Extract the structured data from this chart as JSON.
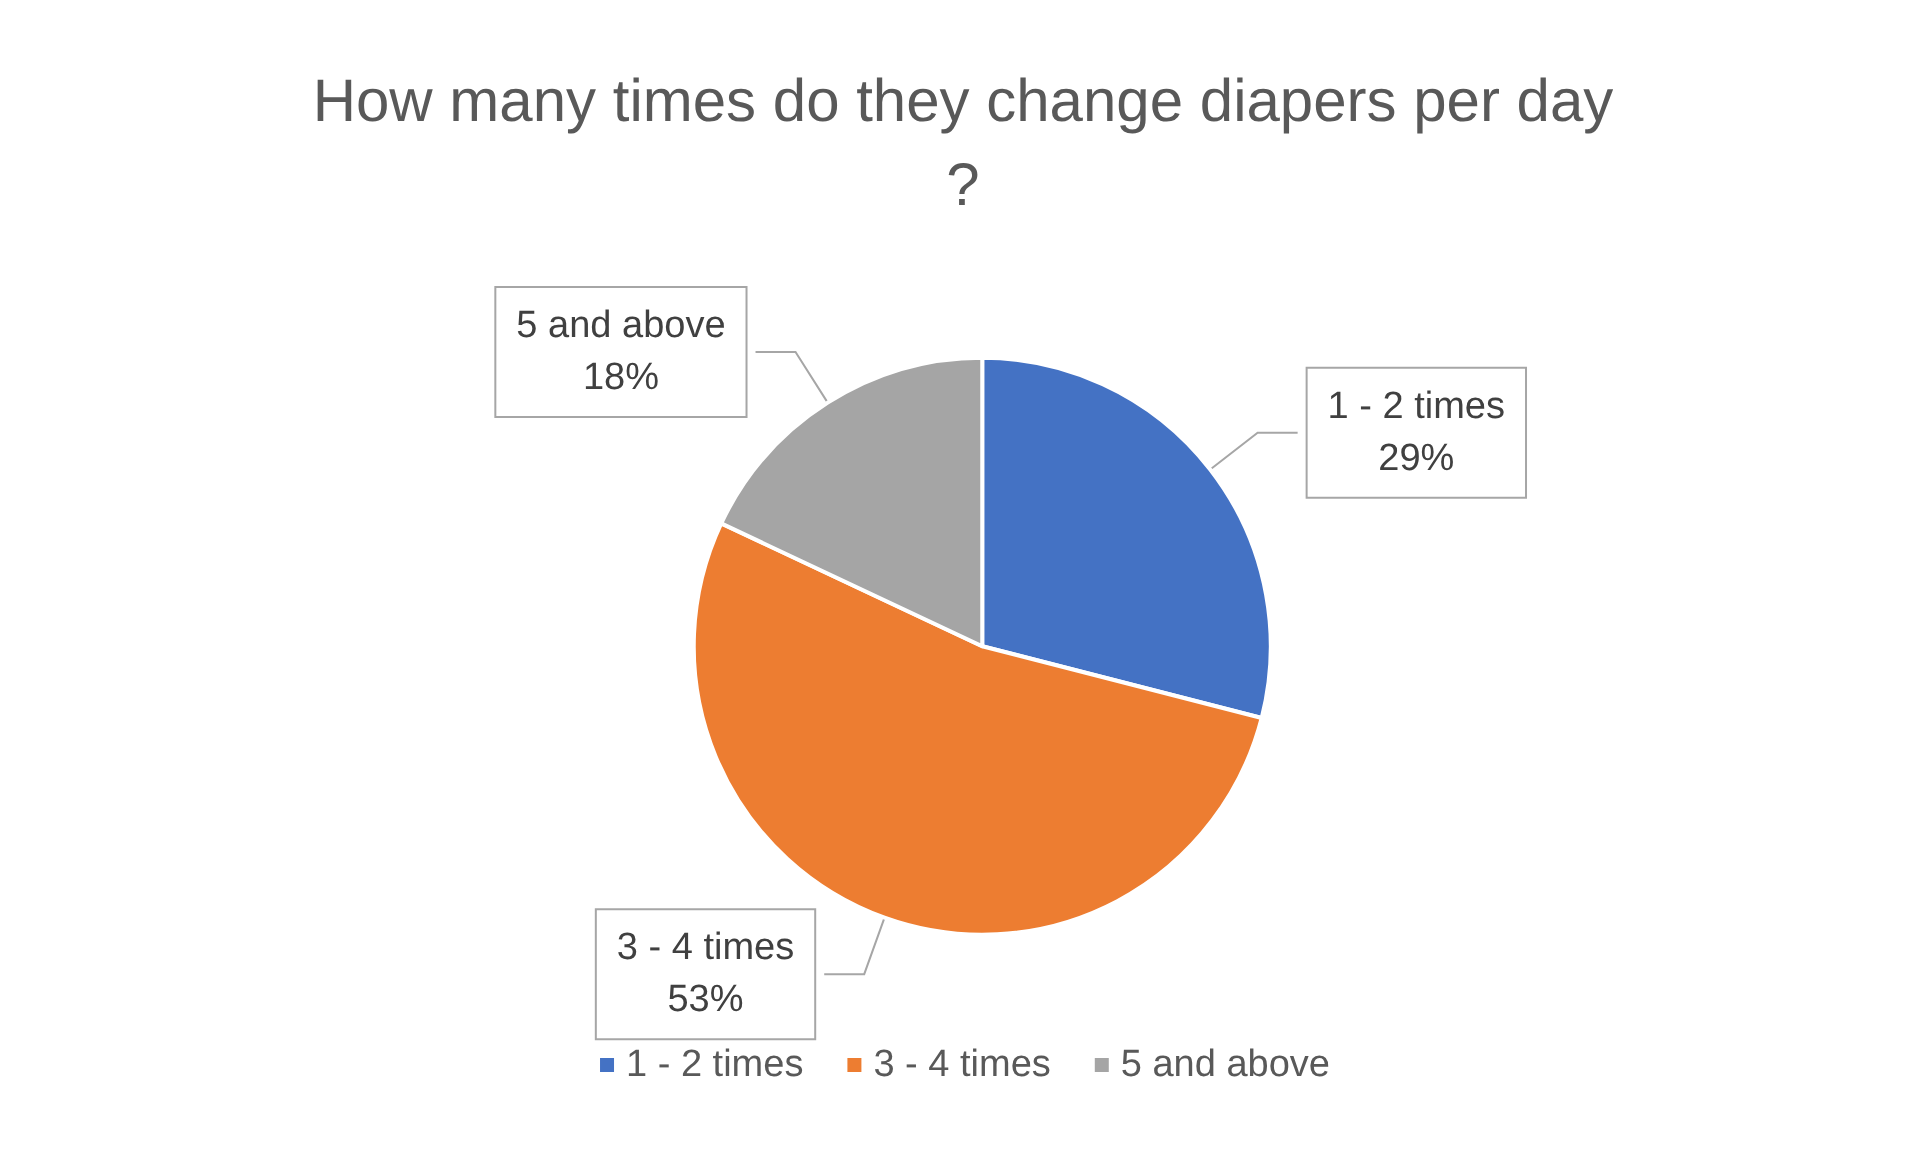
{
  "chart_data": {
    "type": "pie",
    "title": "How many times do they change diapers per day?",
    "categories": [
      "1 - 2 times",
      "3 - 4 times",
      "5 and above"
    ],
    "values": [
      29,
      53,
      18
    ],
    "colors": [
      "#4472c4",
      "#ed7d31",
      "#a5a5a5"
    ],
    "value_labels": [
      "29%",
      "53%",
      "18%"
    ],
    "legend": "bottom"
  }
}
